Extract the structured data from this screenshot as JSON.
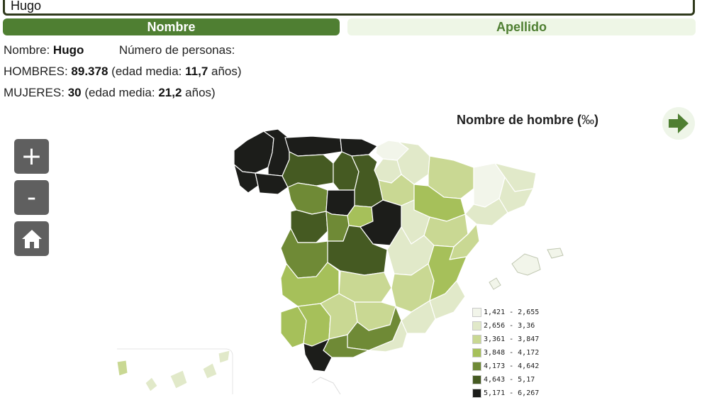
{
  "search": {
    "value": "Hugo"
  },
  "tabs": [
    {
      "label": "Nombre",
      "active": true
    },
    {
      "label": "Apellido",
      "active": false
    }
  ],
  "summary": {
    "name_label": "Nombre:",
    "name_value": "Hugo",
    "persons_label": "Número de personas:",
    "men_label": "HOMBRES:",
    "men_count": "89.378",
    "men_age_label": "(edad media:",
    "men_age": "11,7",
    "men_age_unit": "años)",
    "women_label": "MUJERES:",
    "women_count": "30",
    "women_age_label": "(edad media:",
    "women_age": "21,2",
    "women_age_unit": "años)"
  },
  "map": {
    "title": "Nombre de hombre (",
    "title_unit": "‰",
    "title_close": ")",
    "controls": {
      "zoom_in": "+",
      "zoom_out": "-"
    },
    "legend": [
      {
        "label": "1,421 - 2,655",
        "color": "#f2f5ea"
      },
      {
        "label": "2,656 - 3,36",
        "color": "#e1e9c9"
      },
      {
        "label": "3,361 - 3,847",
        "color": "#c9d893"
      },
      {
        "label": "3,848 - 4,172",
        "color": "#a6c05a"
      },
      {
        "label": "4,173 - 4,642",
        "color": "#6f8a36"
      },
      {
        "label": "4,643 - 5,17",
        "color": "#455a22"
      },
      {
        "label": "5,171 - 6,267",
        "color": "#1c1d1a"
      }
    ],
    "accent_color": "#4f7f32"
  }
}
